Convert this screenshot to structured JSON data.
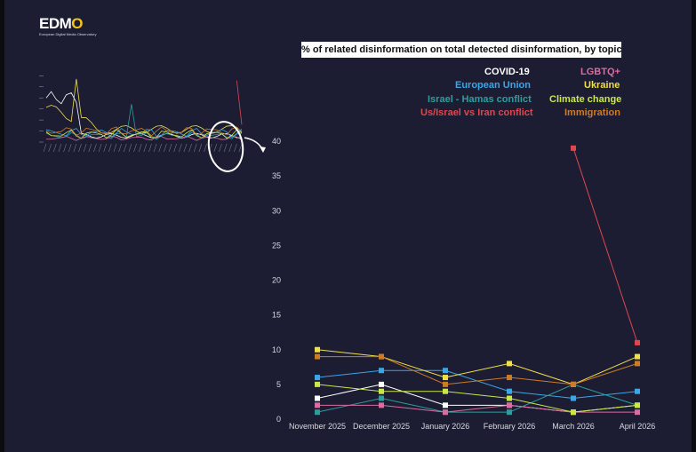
{
  "logo": {
    "text_main": "EDM",
    "text_o": "O",
    "subtitle": "European Digital Media Observatory"
  },
  "colors": {
    "background": "#1c1d33",
    "covid": "#ffffff",
    "eu": "#3aa6e6",
    "israel_hamas": "#2f9c9c",
    "us_israel_iran": "#e0464d",
    "lgbtq": "#d96ca0",
    "ukraine": "#f0df4a",
    "climate": "#c9e64a",
    "immigration": "#cf7a25"
  },
  "chart_data": {
    "type": "line",
    "title": "% of related disinformation on total detected disinformation, by topic",
    "categories": [
      "November 2025",
      "December 2025",
      "January 2026",
      "February 2026",
      "March 2026",
      "April 2026"
    ],
    "ylim": [
      0,
      40
    ],
    "yticks": [
      0,
      5,
      10,
      15,
      20,
      25,
      30,
      35,
      40
    ],
    "grid": false,
    "legend_position": "top",
    "series": [
      {
        "name": "COVID-19",
        "color": "#ffffff",
        "values": [
          3,
          5,
          2,
          2,
          1,
          2
        ]
      },
      {
        "name": "European Union",
        "color": "#3aa6e6",
        "values": [
          6,
          7,
          7,
          4,
          3,
          4
        ]
      },
      {
        "name": "Israel - Hamas conflict",
        "color": "#2f9c9c",
        "values": [
          1,
          3,
          1,
          1,
          5,
          2
        ]
      },
      {
        "name": "Us/Israel vs Iran conflict",
        "color": "#e0464d",
        "values": [
          null,
          null,
          null,
          null,
          39,
          11
        ]
      },
      {
        "name": "LGBTQ+",
        "color": "#d96ca0",
        "values": [
          2,
          2,
          1,
          2,
          1,
          1
        ]
      },
      {
        "name": "Ukraine",
        "color": "#f0df4a",
        "values": [
          10,
          9,
          6,
          8,
          5,
          9
        ]
      },
      {
        "name": "Climate change",
        "color": "#c9e64a",
        "values": [
          5,
          4,
          4,
          3,
          1,
          2
        ]
      },
      {
        "name": "Immigration",
        "color": "#cf7a25",
        "values": [
          9,
          9,
          5,
          6,
          5,
          8
        ]
      }
    ]
  }
}
